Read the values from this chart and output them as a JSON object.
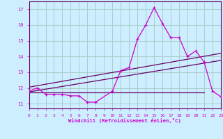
{
  "bg_color": "#cceeff",
  "grid_color": "#aacccc",
  "line_color": "#cc00cc",
  "line_color_dark": "#660066",
  "xlabel": "Windchill (Refroidissement éolien,°C)",
  "xlim": [
    0,
    23
  ],
  "ylim": [
    10.7,
    17.5
  ],
  "yticks": [
    11,
    12,
    13,
    14,
    15,
    16,
    17
  ],
  "xticks": [
    0,
    1,
    2,
    3,
    4,
    5,
    6,
    7,
    8,
    9,
    10,
    11,
    12,
    13,
    14,
    15,
    16,
    17,
    18,
    19,
    20,
    21,
    22,
    23
  ],
  "main_line_x": [
    0,
    1,
    2,
    3,
    4,
    5,
    6,
    7,
    8,
    10,
    11,
    12,
    13,
    14,
    15,
    16,
    17,
    18,
    19,
    20,
    21,
    22,
    23
  ],
  "main_line_y": [
    11.8,
    12.0,
    11.6,
    11.6,
    11.6,
    11.5,
    11.5,
    11.1,
    11.1,
    11.8,
    13.1,
    13.3,
    15.1,
    16.0,
    17.1,
    16.1,
    15.2,
    15.2,
    14.0,
    14.35,
    13.65,
    11.8,
    11.45
  ],
  "reg_line1_x": [
    0,
    23
  ],
  "reg_line1_y": [
    11.75,
    13.75
  ],
  "reg_line2_x": [
    0,
    23
  ],
  "reg_line2_y": [
    12.05,
    14.2
  ],
  "flat_line_x": [
    0,
    21
  ],
  "flat_line_y": [
    11.73,
    11.73
  ]
}
